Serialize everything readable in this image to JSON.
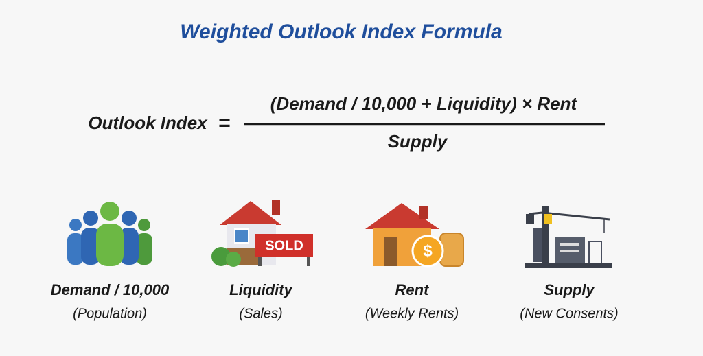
{
  "header": {
    "title": "Weighted Outlook Index Formula"
  },
  "formula": {
    "lhs": "Outlook Index",
    "equals": "=",
    "numerator": "(Demand / 10,000 + Liquidity) × Rent",
    "denominator": "Supply"
  },
  "items": [
    {
      "label": "Demand / 10,000",
      "sublabel": "(Population)"
    },
    {
      "label": "Liquidity",
      "sublabel": "(Sales)",
      "icon_text": "SOLD"
    },
    {
      "label": "Rent",
      "sublabel": "(Weekly Rents)",
      "icon_text": "$"
    },
    {
      "label": "Supply",
      "sublabel": "(New Consents)"
    }
  ]
}
